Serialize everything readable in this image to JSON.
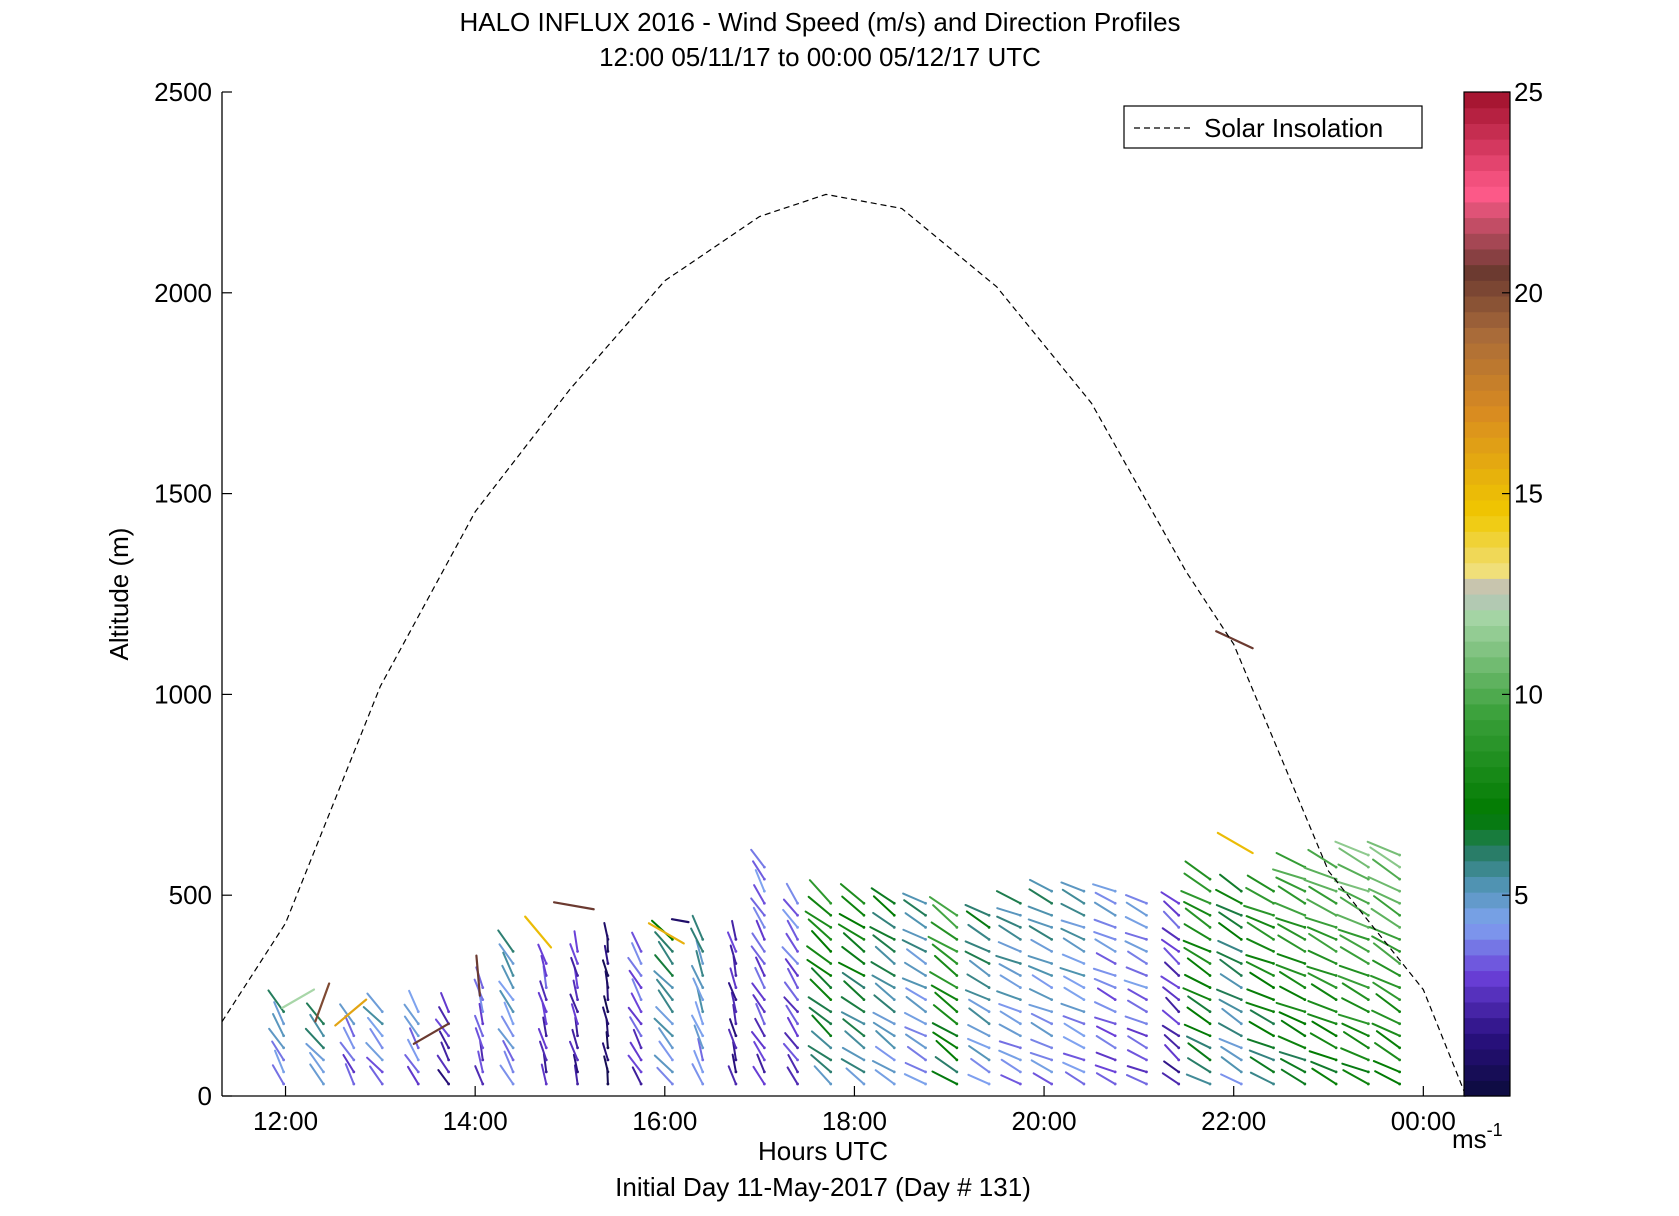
{
  "chart_data": {
    "type": "wind-barb-profile",
    "title": "HALO INFLUX 2016 - Wind Speed (m/s) and Direction Profiles",
    "subtitle": "12:00 05/11/17 to 00:00 05/12/17  UTC",
    "xlabel": "Hours UTC",
    "footer": "Initial Day 11-May-2017 (Day # 131)",
    "ylabel": "Altitude (m)",
    "x_unit": "hours UTC",
    "xlim": [
      11.33,
      24.45
    ],
    "ylim": [
      0,
      2500
    ],
    "xticks": [
      {
        "value": 12,
        "label": "12:00"
      },
      {
        "value": 14,
        "label": "14:00"
      },
      {
        "value": 16,
        "label": "16:00"
      },
      {
        "value": 18,
        "label": "18:00"
      },
      {
        "value": 20,
        "label": "20:00"
      },
      {
        "value": 22,
        "label": "22:00"
      },
      {
        "value": 24,
        "label": "00:00"
      }
    ],
    "yticks": [
      0,
      500,
      1000,
      1500,
      2000,
      2500
    ],
    "legend": {
      "entries": [
        "Solar Insolation"
      ],
      "position": "top-right"
    },
    "colorbar": {
      "label": "ms",
      "label_exponent": "-1",
      "range": [
        0,
        25
      ],
      "ticks": [
        5,
        10,
        15,
        20,
        25
      ],
      "stops": [
        {
          "v": 0,
          "c": "#0b0b3b"
        },
        {
          "v": 1.5,
          "c": "#2a1080"
        },
        {
          "v": 3,
          "c": "#6a3fd8"
        },
        {
          "v": 4.3,
          "c": "#7fa3f0"
        },
        {
          "v": 5.3,
          "c": "#4f93b0"
        },
        {
          "v": 6.0,
          "c": "#2b7d6e"
        },
        {
          "v": 7.0,
          "c": "#007a00"
        },
        {
          "v": 9.5,
          "c": "#3aa03a"
        },
        {
          "v": 12.0,
          "c": "#a8d6a8"
        },
        {
          "v": 12.6,
          "c": "#bcbcbc"
        },
        {
          "v": 13.0,
          "c": "#f0e080"
        },
        {
          "v": 14.5,
          "c": "#f0c800"
        },
        {
          "v": 17.0,
          "c": "#d98c20"
        },
        {
          "v": 19.0,
          "c": "#a86a3a"
        },
        {
          "v": 20.5,
          "c": "#6b3a30"
        },
        {
          "v": 22.5,
          "c": "#ff5a8a"
        },
        {
          "v": 25.0,
          "c": "#a0102a"
        }
      ]
    },
    "solar_insolation": {
      "style": "dashed",
      "color": "#000000",
      "x": [
        11.33,
        12.0,
        13.0,
        14.0,
        15.0,
        16.0,
        17.0,
        17.7,
        18.5,
        19.5,
        20.5,
        21.5,
        22.0,
        23.0,
        24.0,
        24.45
      ],
      "y": [
        185,
        430,
        1020,
        1455,
        1760,
        2030,
        2190,
        2245,
        2210,
        2015,
        1725,
        1305,
        1125,
        560,
        265,
        0
      ]
    },
    "profiles": [
      {
        "t": 11.98,
        "top": 210,
        "dir": 330,
        "spd": 4.3
      },
      {
        "t": 12.4,
        "top": 200,
        "dir": 320,
        "spd": 5.0
      },
      {
        "t": 12.72,
        "top": 200,
        "dir": 330,
        "spd": 3.5
      },
      {
        "t": 13.02,
        "top": 210,
        "dir": 320,
        "spd": 4.0
      },
      {
        "t": 13.4,
        "top": 220,
        "dir": 330,
        "spd": 3.8
      },
      {
        "t": 13.72,
        "top": 210,
        "dir": 330,
        "spd": 2.2
      },
      {
        "t": 14.08,
        "top": 270,
        "dir": 345,
        "spd": 3.0
      },
      {
        "t": 14.4,
        "top": 380,
        "dir": 330,
        "spd": 4.3
      },
      {
        "t": 14.75,
        "top": 330,
        "dir": 345,
        "spd": 2.5
      },
      {
        "t": 15.08,
        "top": 360,
        "dir": 345,
        "spd": 2.2
      },
      {
        "t": 15.4,
        "top": 390,
        "dir": 350,
        "spd": 0.8
      },
      {
        "t": 15.75,
        "top": 380,
        "dir": 330,
        "spd": 3.0
      },
      {
        "t": 16.08,
        "top": 400,
        "dir": 320,
        "spd": 5.0
      },
      {
        "t": 16.4,
        "top": 410,
        "dir": 340,
        "spd": 4.5
      },
      {
        "t": 16.75,
        "top": 410,
        "dir": 345,
        "spd": 2.0
      },
      {
        "t": 17.05,
        "top": 590,
        "dir": 330,
        "spd": 3.0
      },
      {
        "t": 17.4,
        "top": 500,
        "dir": 325,
        "spd": 3.0
      },
      {
        "t": 17.75,
        "top": 490,
        "dir": 310,
        "spd": 6.5
      },
      {
        "t": 18.1,
        "top": 480,
        "dir": 305,
        "spd": 6.0
      },
      {
        "t": 18.42,
        "top": 480,
        "dir": 305,
        "spd": 5.2
      },
      {
        "t": 18.75,
        "top": 500,
        "dir": 300,
        "spd": 4.5
      },
      {
        "t": 19.08,
        "top": 470,
        "dir": 305,
        "spd": 7.5
      },
      {
        "t": 19.42,
        "top": 470,
        "dir": 300,
        "spd": 5.0
      },
      {
        "t": 19.75,
        "top": 490,
        "dir": 295,
        "spd": 4.5
      },
      {
        "t": 20.08,
        "top": 530,
        "dir": 295,
        "spd": 4.5
      },
      {
        "t": 20.42,
        "top": 520,
        "dir": 295,
        "spd": 4.3
      },
      {
        "t": 20.75,
        "top": 520,
        "dir": 295,
        "spd": 3.5
      },
      {
        "t": 21.08,
        "top": 500,
        "dir": 295,
        "spd": 3.5
      },
      {
        "t": 21.42,
        "top": 500,
        "dir": 310,
        "spd": 2.5
      },
      {
        "t": 21.75,
        "top": 560,
        "dir": 300,
        "spd": 7.0
      },
      {
        "t": 22.08,
        "top": 530,
        "dir": 300,
        "spd": 5.5
      },
      {
        "t": 22.42,
        "top": 530,
        "dir": 295,
        "spd": 7.0
      },
      {
        "t": 22.75,
        "top": 570,
        "dir": 295,
        "spd": 7.5
      },
      {
        "t": 23.08,
        "top": 580,
        "dir": 295,
        "spd": 8.0
      },
      {
        "t": 23.42,
        "top": 610,
        "dir": 295,
        "spd": 8.5
      },
      {
        "t": 23.75,
        "top": 610,
        "dir": 300,
        "spd": 8.5
      }
    ],
    "outliers": [
      {
        "t": 12.3,
        "alt": 265,
        "dir": 240,
        "spd": 12.0
      },
      {
        "t": 12.46,
        "alt": 280,
        "dir": 200,
        "spd": 20.0
      },
      {
        "t": 12.85,
        "alt": 240,
        "dir": 230,
        "spd": 16.0
      },
      {
        "t": 13.72,
        "alt": 180,
        "dir": 240,
        "spd": 20.5
      },
      {
        "t": 14.05,
        "alt": 250,
        "dir": 355,
        "spd": 20.5
      },
      {
        "t": 14.8,
        "alt": 370,
        "dir": 320,
        "spd": 15.0
      },
      {
        "t": 15.25,
        "alt": 465,
        "dir": 280,
        "spd": 20.5
      },
      {
        "t": 16.2,
        "alt": 380,
        "dir": 300,
        "spd": 15.5
      },
      {
        "t": 16.25,
        "alt": 433,
        "dir": 280,
        "spd": 1.0
      },
      {
        "t": 22.2,
        "alt": 1115,
        "dir": 295,
        "spd": 20.5
      },
      {
        "t": 22.2,
        "alt": 605,
        "dir": 300,
        "spd": 15.0
      }
    ]
  }
}
